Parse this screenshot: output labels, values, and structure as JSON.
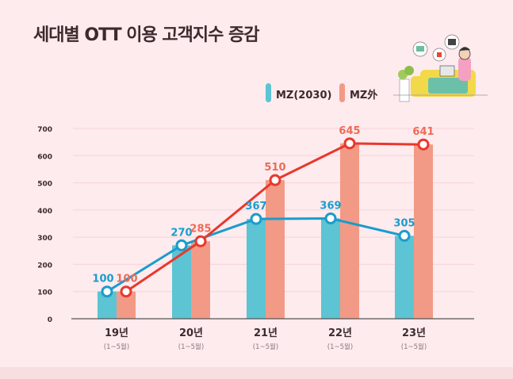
{
  "chart_data": {
    "type": "bar+line",
    "title": "세대별 OTT 이용 고객지수 증감",
    "categories": [
      "19년",
      "20년",
      "21년",
      "22년",
      "23년"
    ],
    "category_sublabels": [
      "(1~5월)",
      "(1~5월)",
      "(1~5월)",
      "(1~5월)",
      "(1~5월)"
    ],
    "ylim": [
      0,
      700
    ],
    "yticks": [
      0,
      100,
      200,
      300,
      400,
      500,
      600,
      700
    ],
    "grid": true,
    "legend_position": "top-right",
    "series": [
      {
        "name": "MZ(2030)",
        "values": [
          100,
          270,
          367,
          369,
          305
        ],
        "color": "#1a9ccc",
        "bar_color": "#5cc4d2"
      },
      {
        "name": "MZ外",
        "values": [
          100,
          285,
          510,
          645,
          641
        ],
        "color": "#e8382c",
        "bar_color": "#f29a86",
        "label_color": "#ee6b55"
      }
    ]
  }
}
